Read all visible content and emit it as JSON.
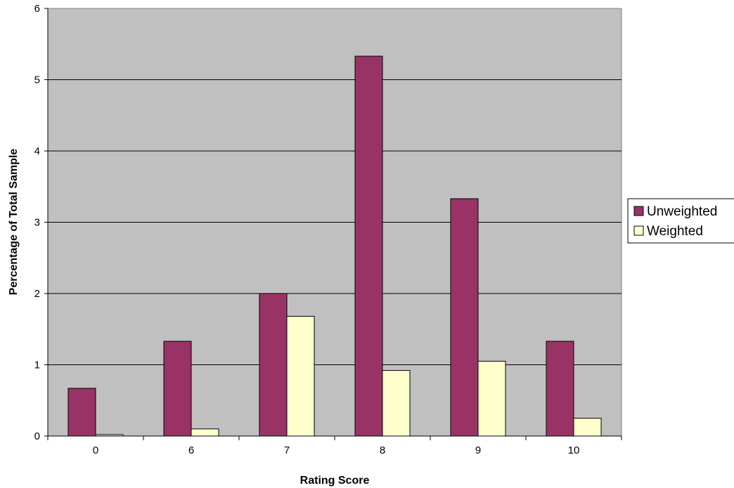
{
  "chart_data": {
    "type": "bar",
    "title": "",
    "xlabel": "Rating Score",
    "ylabel": "Percentage of Total Sample",
    "categories": [
      "0",
      "6",
      "7",
      "8",
      "9",
      "10"
    ],
    "series": [
      {
        "name": "Unweighted",
        "color": "#993366",
        "values": [
          0.67,
          1.33,
          2.0,
          5.33,
          3.33,
          1.33
        ]
      },
      {
        "name": "Weighted",
        "color": "#FFFFCC",
        "values": [
          0.02,
          0.1,
          1.68,
          0.92,
          1.05,
          0.25
        ]
      }
    ],
    "ylim": [
      0,
      6
    ],
    "yticks": [
      "0",
      "1",
      "2",
      "3",
      "4",
      "5",
      "6"
    ],
    "grid": true,
    "plot_background": "#C0C0C0",
    "legend_position": "right"
  }
}
